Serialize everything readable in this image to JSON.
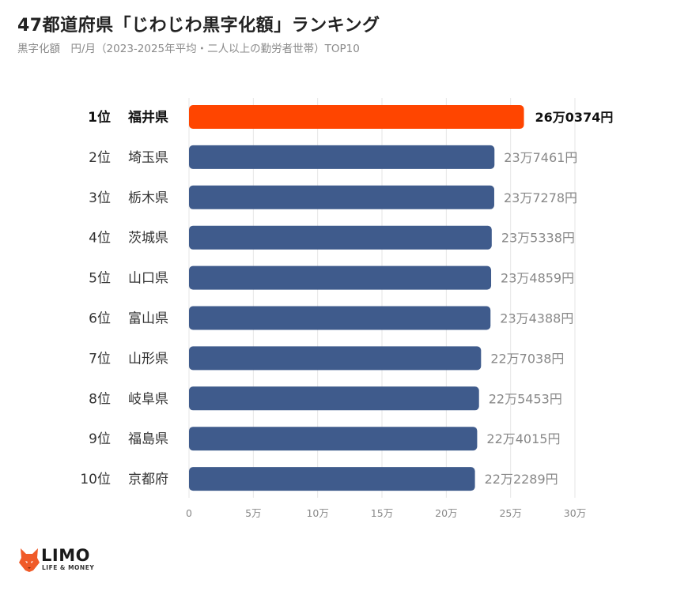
{
  "title": "47都道府県「じわじわ黒字化額」ランキング",
  "subtitle": "黒字化額　円/月（2023-2025年平均・二人以上の勤労者世帯）TOP10",
  "colors": {
    "highlight": "#ff4500",
    "bar": "#3f5b8c",
    "grid": "#e6e6e6"
  },
  "chart_data": {
    "type": "bar",
    "orientation": "horizontal",
    "xlim": [
      0,
      300000
    ],
    "x_ticks": [
      0,
      50000,
      100000,
      150000,
      200000,
      250000,
      300000
    ],
    "x_tick_labels": [
      "0",
      "5万",
      "10万",
      "15万",
      "20万",
      "25万",
      "30万"
    ],
    "grid": true,
    "ranks": [
      "1位",
      "2位",
      "3位",
      "4位",
      "5位",
      "6位",
      "7位",
      "8位",
      "9位",
      "10位"
    ],
    "categories": [
      "福井県",
      "埼玉県",
      "栃木県",
      "茨城県",
      "山口県",
      "富山県",
      "山形県",
      "岐阜県",
      "福島県",
      "京都府"
    ],
    "values": [
      260374,
      237461,
      237278,
      235338,
      234859,
      234388,
      227038,
      225453,
      224015,
      222289
    ],
    "value_labels": [
      "26万0374円",
      "23万7461円",
      "23万7278円",
      "23万5338円",
      "23万4859円",
      "23万4388円",
      "22万7038円",
      "22万5453円",
      "22万4015円",
      "22万2289円"
    ],
    "highlight_index": 0
  },
  "logo": {
    "name": "LIMO",
    "tagline": "LIFE & MONEY"
  }
}
